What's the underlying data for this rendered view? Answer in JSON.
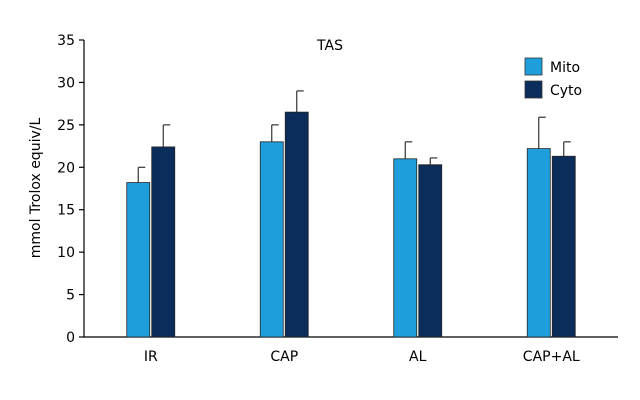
{
  "chart_data": {
    "type": "bar",
    "title": "TAS",
    "xlabel": "",
    "ylabel": "mmol Trolox equiv/L",
    "ylim": [
      0,
      35
    ],
    "yticks": [
      0,
      5,
      10,
      15,
      20,
      25,
      30,
      35
    ],
    "grid": false,
    "legend_position": "top-right",
    "categories": [
      "IR",
      "CAP",
      "AL",
      "CAP+AL"
    ],
    "series": [
      {
        "name": "Mito",
        "color": "#1E9FDC",
        "values": [
          18.2,
          23.0,
          21.0,
          22.2
        ],
        "errors": [
          1.8,
          2.0,
          2.0,
          3.7
        ]
      },
      {
        "name": "Cyto",
        "color": "#0B2D5B",
        "values": [
          22.4,
          26.5,
          20.3,
          21.3
        ],
        "errors": [
          2.6,
          2.5,
          0.8,
          1.7
        ]
      }
    ]
  }
}
